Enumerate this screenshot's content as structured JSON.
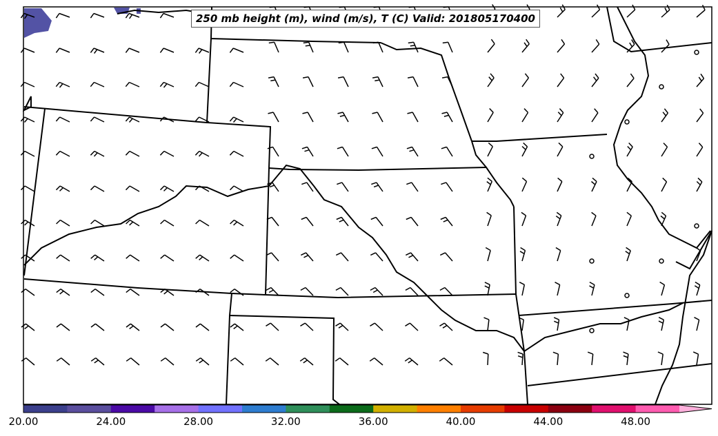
{
  "title": "250 mb height (m), wind (m/s), T (C) Valid: 201805170400",
  "colorbar": {
    "ticks": [
      "20.00",
      "24.00",
      "28.00",
      "32.00",
      "36.00",
      "40.00",
      "44.00",
      "48.00"
    ],
    "colors": [
      "#3b3f8c",
      "#5a4e9e",
      "#4b0aa6",
      "#a770e8",
      "#7272ff",
      "#2e7dd0",
      "#2f8f5a",
      "#0b6b1a",
      "#d2b000",
      "#ff8000",
      "#e63c00",
      "#c80000",
      "#8b0010",
      "#e0106e",
      "#ff5cb0",
      "#ffb0dc"
    ],
    "extend": "max"
  },
  "map": {
    "region": "Central Plains, United States",
    "features": [
      "state boundaries",
      "rivers",
      "wind barbs",
      "temperature shading"
    ],
    "shading_color": "#4a4aa0"
  }
}
